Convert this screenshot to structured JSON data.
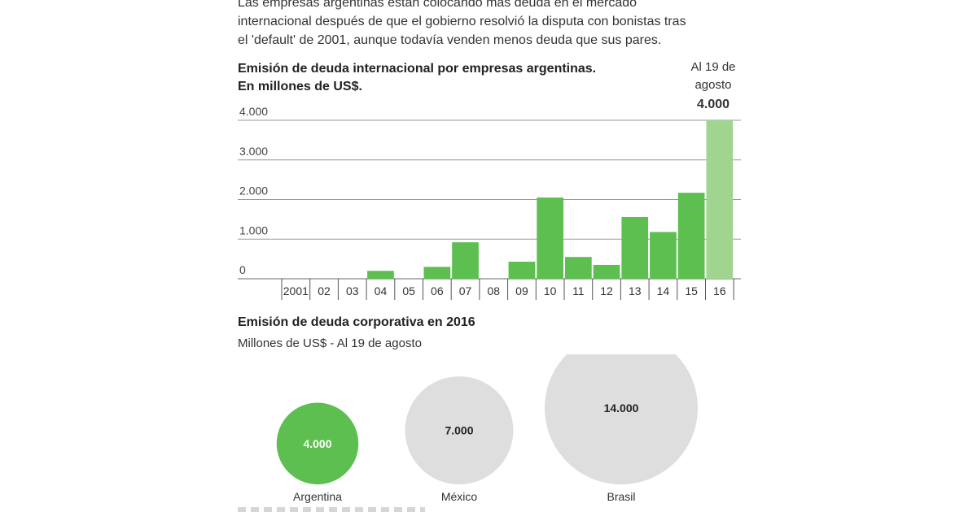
{
  "intro_lines": [
    "Las empresas argentinas están colocando más deuda en el mercado",
    "internacional después de que el gobierno resolvió la disputa con bonistas tras",
    "el 'default' de 2001, aunque todavía venden menos deuda que sus pares."
  ],
  "colors": {
    "bar": "#5cbf4f",
    "bar_highlight": "#9fd58f",
    "bubble_argentina": "#5cbf4f",
    "bubble_other": "#dedede",
    "grid": "#9a9a9a"
  },
  "chart_data": [
    {
      "type": "bar",
      "title_lines": [
        "Emisión de deuda internacional por empresas argentinas.",
        "En millones de US$."
      ],
      "categories": [
        "2001",
        "02",
        "03",
        "04",
        "05",
        "06",
        "07",
        "08",
        "09",
        "10",
        "11",
        "12",
        "13",
        "14",
        "15",
        "16"
      ],
      "values": [
        0,
        0,
        0,
        200,
        0,
        300,
        920,
        0,
        430,
        2050,
        550,
        350,
        1560,
        1180,
        2170,
        4000
      ],
      "highlight_index": 15,
      "ylim": [
        0,
        4000
      ],
      "yticks": [
        {
          "value": 0,
          "label": "0"
        },
        {
          "value": 1000,
          "label": "1.000"
        },
        {
          "value": 2000,
          "label": "2.000"
        },
        {
          "value": 3000,
          "label": "3.000"
        },
        {
          "value": 4000,
          "label": "4.000"
        }
      ],
      "grid": true,
      "annotation": {
        "text_lines": [
          "Al 19 de",
          "agosto"
        ],
        "value_label": "4.000"
      }
    },
    {
      "type": "bubble",
      "title": "Emisión de deuda corporativa en 2016",
      "subtitle": "Millones de US$ - Al 19 de agosto",
      "items": [
        {
          "label": "Argentina",
          "value": 4000,
          "value_label": "4.000"
        },
        {
          "label": "México",
          "value": 7000,
          "value_label": "7.000"
        },
        {
          "label": "Brasil",
          "value": 14000,
          "value_label": "14.000"
        }
      ]
    }
  ]
}
